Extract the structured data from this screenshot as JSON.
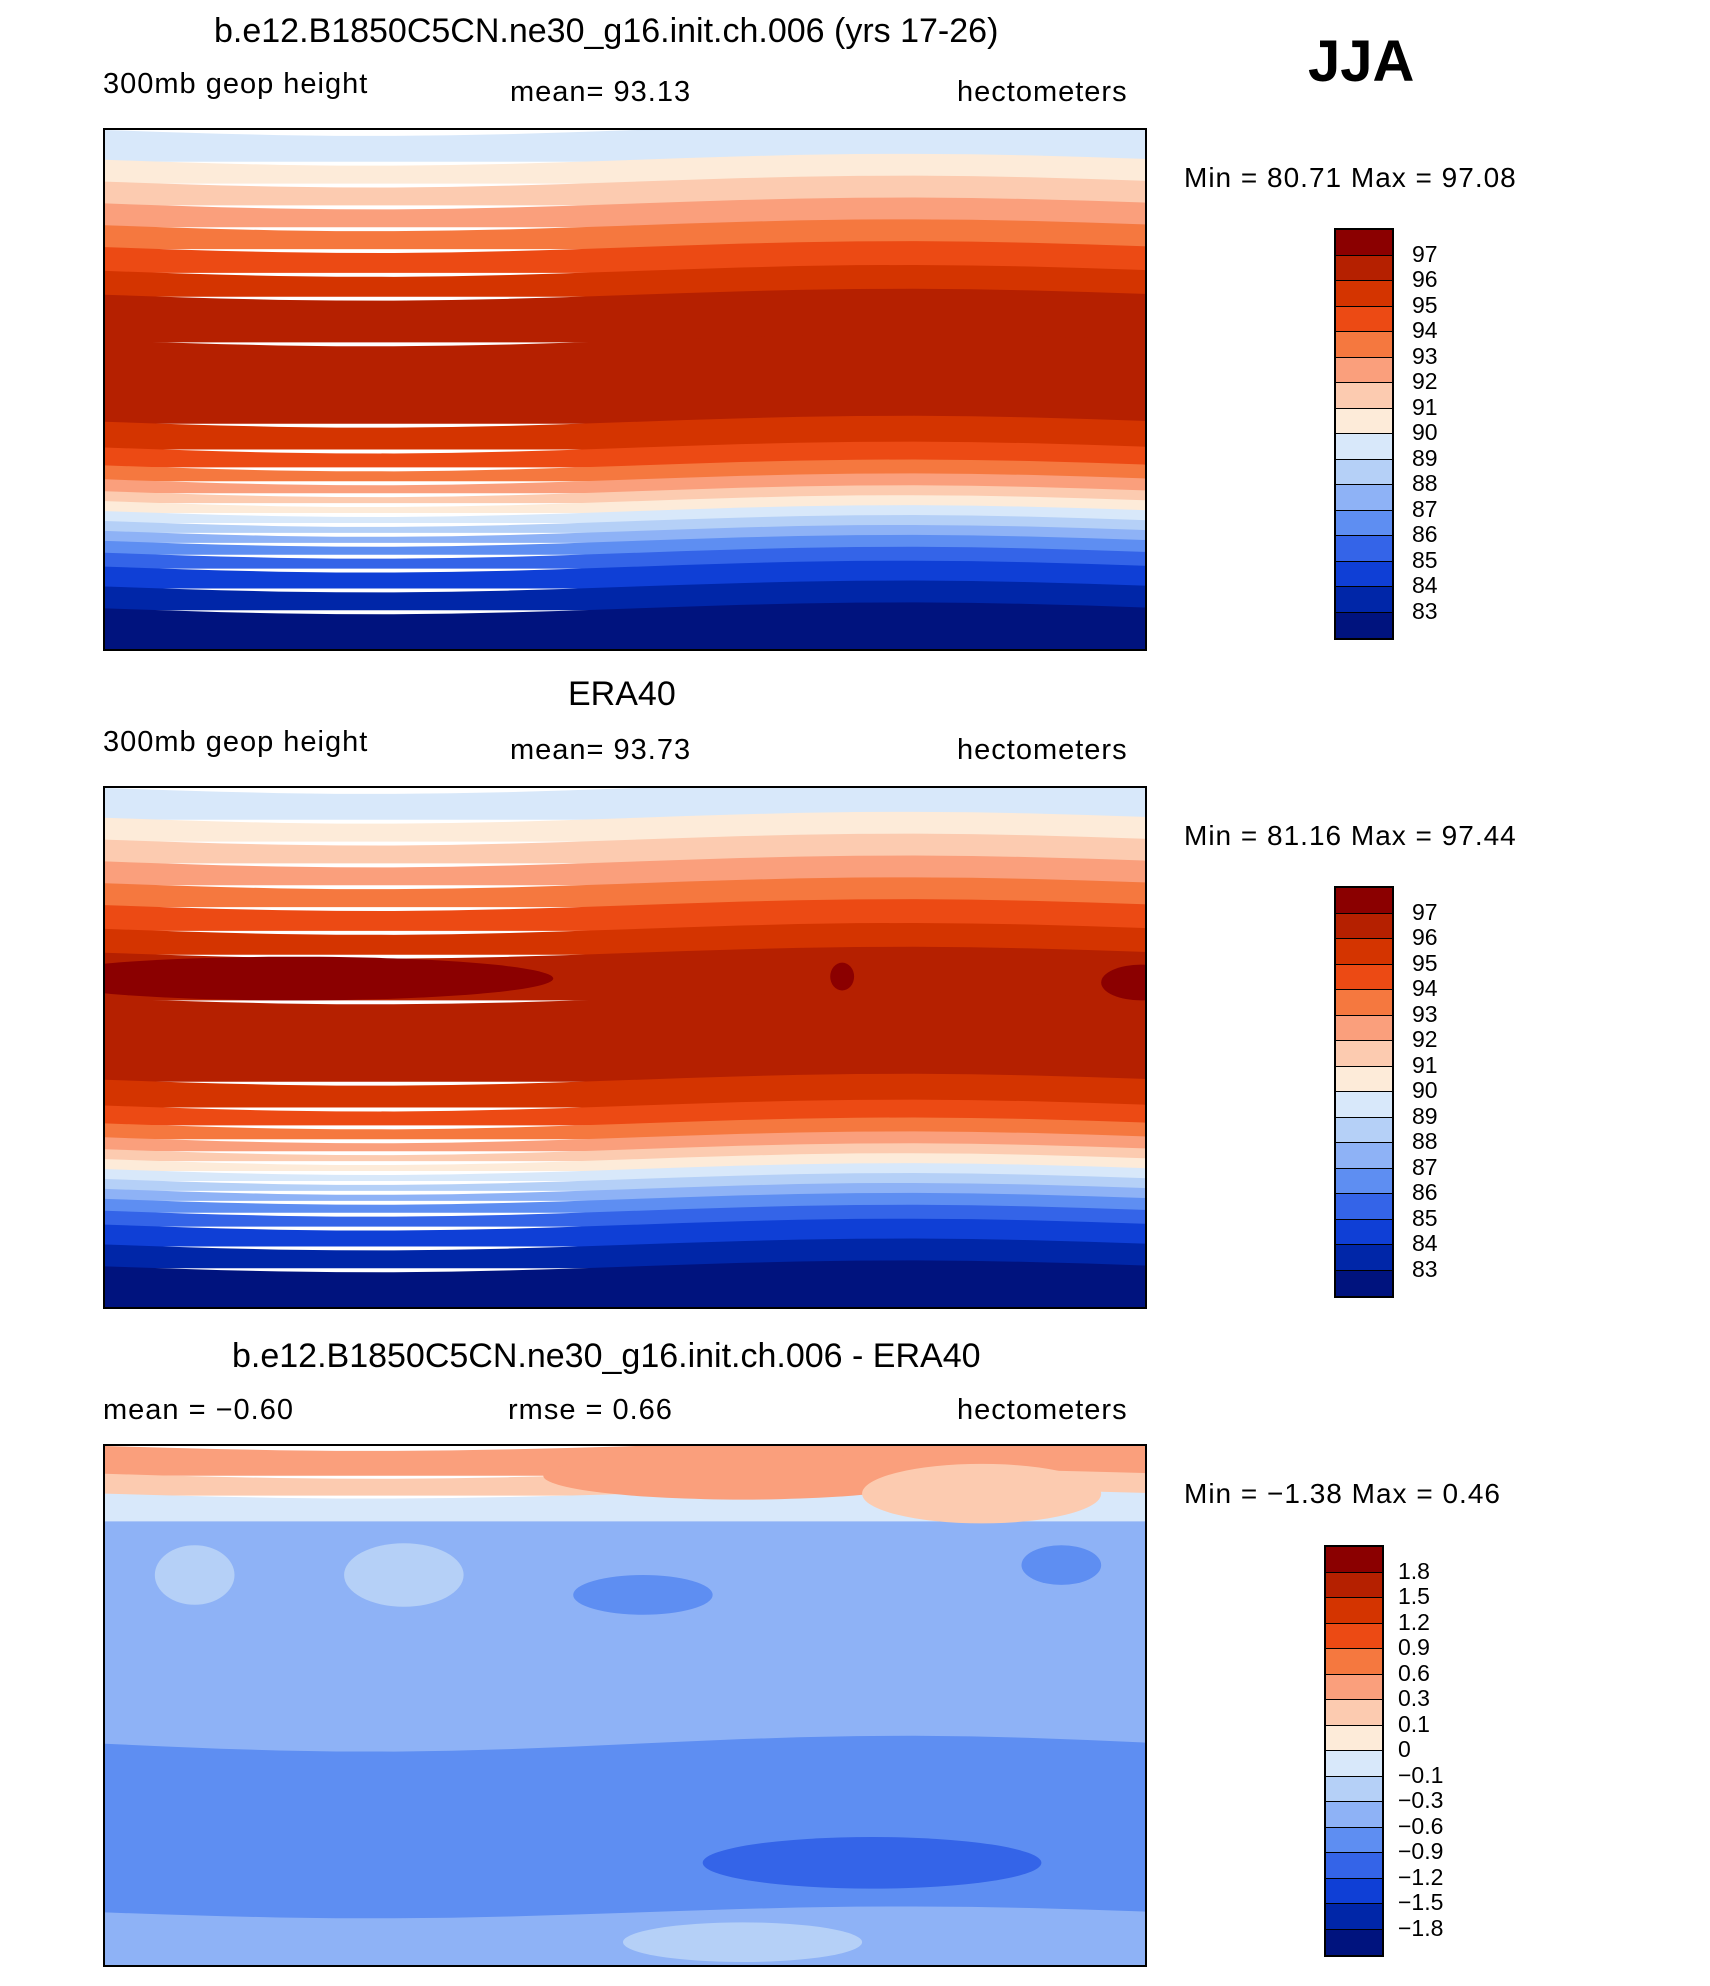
{
  "season": "JJA",
  "panels": [
    {
      "title": "b.e12.B1850C5CN.ne30_g16.init.ch.006 (yrs 17-26)",
      "left": "300mb  geop  height",
      "center": "mean=   93.13",
      "right": "hectometers",
      "minmax": "Min  =    80.71  Max  =    97.08",
      "field": "model"
    },
    {
      "title": "ERA40",
      "left": "300mb  geop  height",
      "center": "mean=   93.73",
      "right": "hectometers",
      "minmax": "Min  =    81.16  Max  =    97.44",
      "field": "obs"
    },
    {
      "title": "b.e12.B1850C5CN.ne30_g16.init.ch.006 - ERA40",
      "left": "mean  =   −0.60",
      "center": "rmse  =     0.66",
      "right": "hectometers",
      "minmax": "Min  =   −1.38  Max  =     0.46",
      "field": "diff"
    }
  ],
  "legend_abs": {
    "labels": [
      "97",
      "96",
      "95",
      "94",
      "93",
      "92",
      "91",
      "90",
      "89",
      "88",
      "87",
      "86",
      "85",
      "84",
      "83"
    ],
    "colors": [
      "#8b0000",
      "#b52000",
      "#d43400",
      "#ec4a14",
      "#f5783f",
      "#fa9f7c",
      "#fccbb0",
      "#fdebd9",
      "#d8e8fa",
      "#b5d0f7",
      "#8eb2f6",
      "#5e8ef2",
      "#3464e8",
      "#0f3fd6",
      "#0026a8",
      "#00137e"
    ]
  },
  "legend_diff": {
    "labels": [
      "1.8",
      "1.5",
      "1.2",
      "0.9",
      "0.6",
      "0.3",
      "0.1",
      "0",
      "−0.1",
      "−0.3",
      "−0.6",
      "−0.9",
      "−1.2",
      "−1.5",
      "−1.8"
    ],
    "colors": [
      "#8b0000",
      "#b52000",
      "#d43400",
      "#ec4a14",
      "#f5783f",
      "#fa9f7c",
      "#fccbb0",
      "#fdebd9",
      "#d8e8fa",
      "#b5d0f7",
      "#8eb2f6",
      "#5e8ef2",
      "#3464e8",
      "#0f3fd6",
      "#0026a8",
      "#00137e"
    ]
  }
}
